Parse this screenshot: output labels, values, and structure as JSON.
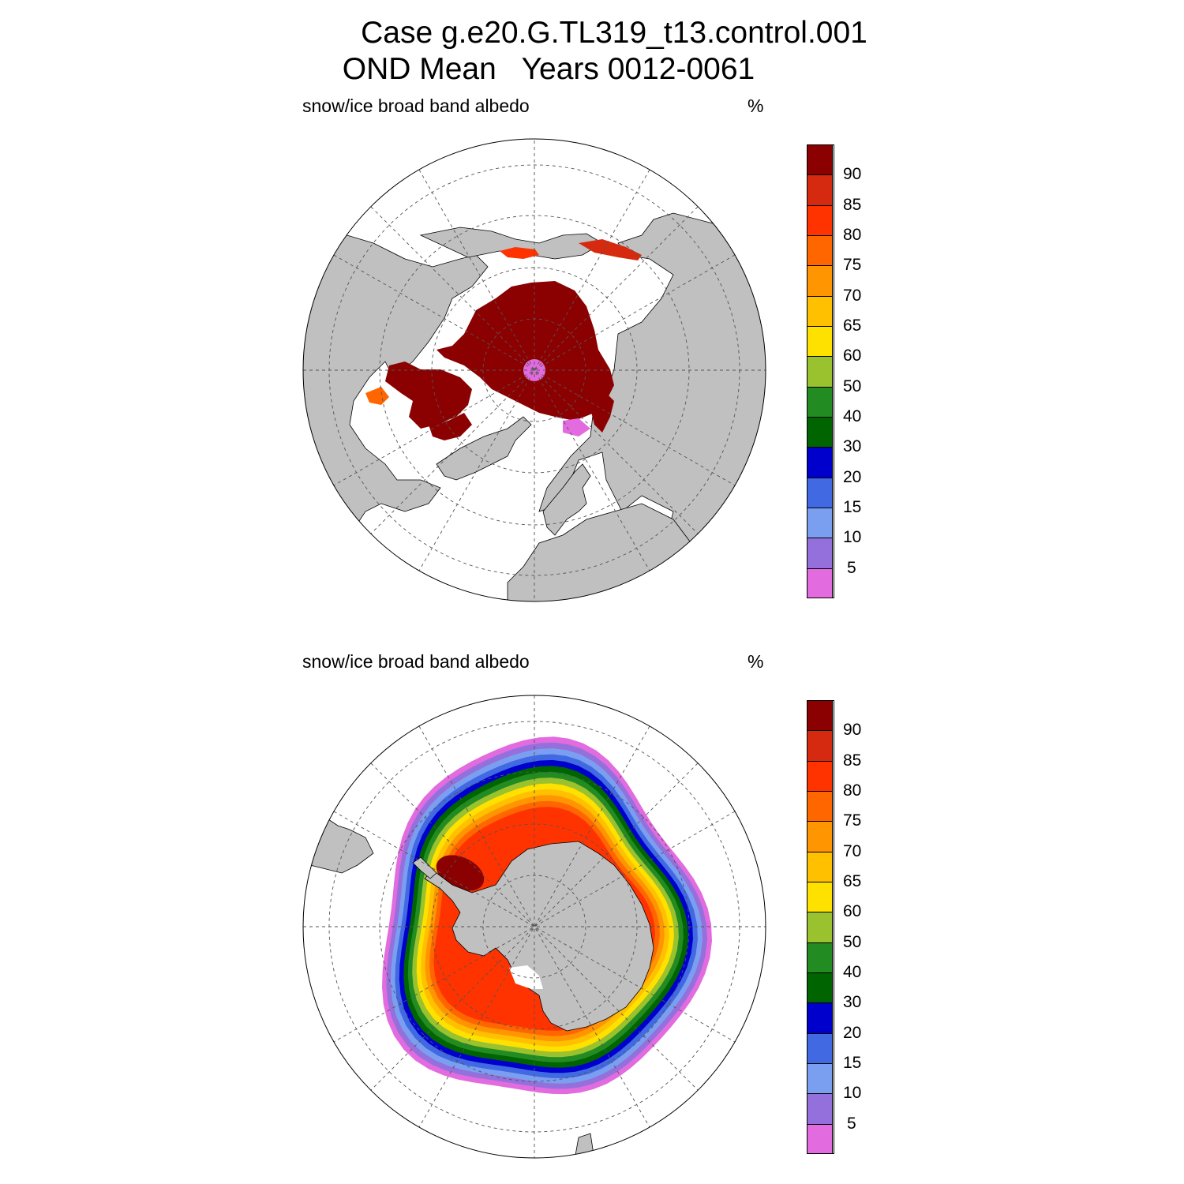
{
  "title": {
    "line1": "Case g.e20.G.TL319_t13.control.001",
    "line2": "OND Mean   Years 0012-0061"
  },
  "panels": [
    {
      "hemisphere": "north",
      "variable_label": "snow/ice broad band albedo",
      "units": "%",
      "dominant_level": "> 90",
      "pole_hole_level": "< 5"
    },
    {
      "hemisphere": "south",
      "variable_label": "snow/ice broad band albedo",
      "units": "%",
      "ring_levels_outer_to_inner": [
        "< 5",
        "5-10",
        "10-15",
        "15-20",
        "20-30",
        "30-40",
        "40-50",
        "50-60",
        "60-65",
        "65-70",
        "70-75",
        "75-80",
        "80-85"
      ],
      "weddell_max_level": "> 90"
    }
  ],
  "colorbar": {
    "ticks": [
      "90",
      "85",
      "80",
      "75",
      "70",
      "65",
      "60",
      "50",
      "40",
      "30",
      "20",
      "15",
      "10",
      "5"
    ],
    "colors_top_to_bottom": [
      "#8b0000",
      "#d62a10",
      "#ff3300",
      "#ff6600",
      "#ff9500",
      "#ffc000",
      "#ffe100",
      "#9ac12e",
      "#228b22",
      "#006400",
      "#0000cd",
      "#4169e1",
      "#7b9ff0",
      "#9370db",
      "#e26bdf"
    ]
  },
  "colors": {
    "land": "#c0c0c0",
    "ocean": "#ffffff",
    "grid": "#555555"
  }
}
